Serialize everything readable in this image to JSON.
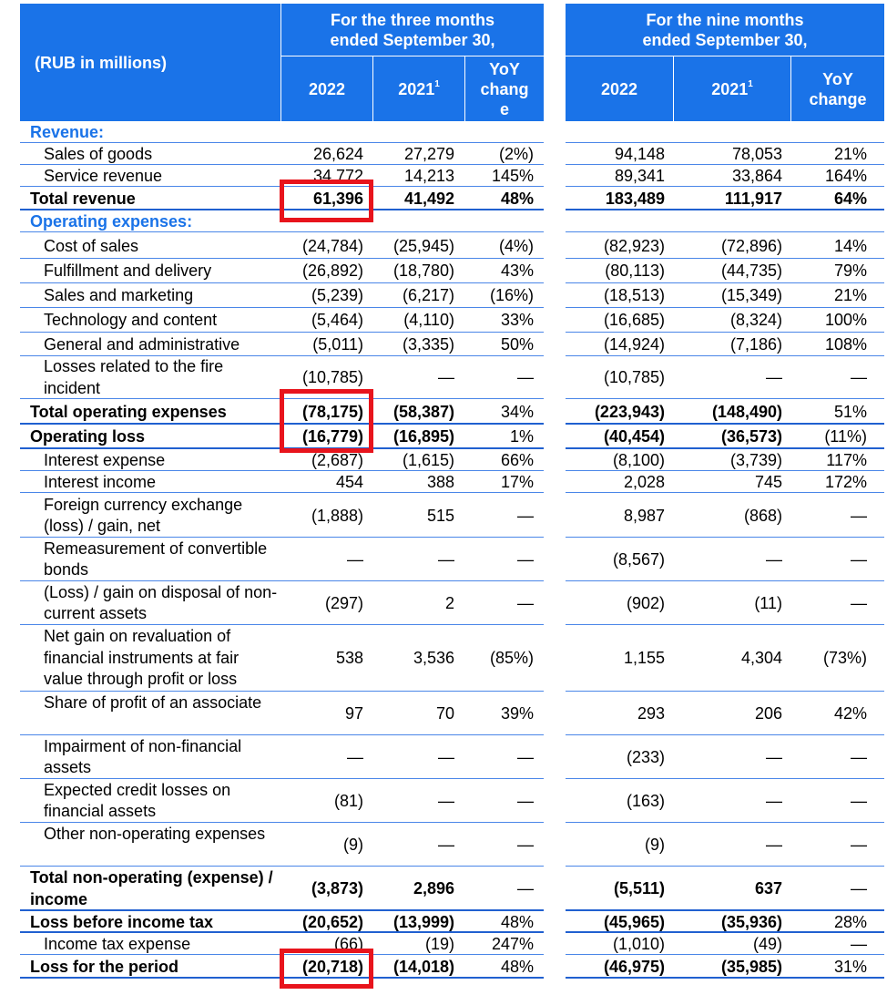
{
  "header": {
    "unit_label": "(RUB in millions)",
    "period_three": "For the three months ended September 30,",
    "period_nine": "For the nine months ended September 30,",
    "col_2022": "2022",
    "col_2021": "2021",
    "footnote_mark": "1",
    "yoy_three": "YoY chang e",
    "yoy_nine": "YoY change"
  },
  "rows": [
    {
      "label": "Revenue:",
      "type": "section",
      "values": [
        "",
        "",
        "",
        "",
        "",
        ""
      ]
    },
    {
      "label": "Sales of goods",
      "type": "item",
      "values": [
        "26,624",
        "27,279",
        "(2%)",
        "94,148",
        "78,053",
        "21%"
      ]
    },
    {
      "label": "Service revenue",
      "type": "item",
      "values": [
        "34,772",
        "14,213",
        "145%",
        "89,341",
        "33,864",
        "164%"
      ]
    },
    {
      "label": "Total revenue",
      "type": "total",
      "values": [
        "61,396",
        "41,492",
        "48%",
        "183,489",
        "111,917",
        "64%"
      ]
    },
    {
      "label": "Operating expenses:",
      "type": "section",
      "values": [
        "",
        "",
        "",
        "",
        "",
        ""
      ]
    },
    {
      "label": "Cost of sales",
      "type": "item",
      "values": [
        "(24,784)",
        "(25,945)",
        "(4%)",
        "(82,923)",
        "(72,896)",
        "14%"
      ]
    },
    {
      "label": "Fulfillment and delivery",
      "type": "item",
      "values": [
        "(26,892)",
        "(18,780)",
        "43%",
        "(80,113)",
        "(44,735)",
        "79%"
      ]
    },
    {
      "label": "Sales and marketing",
      "type": "item",
      "values": [
        "(5,239)",
        "(6,217)",
        "(16%)",
        "(18,513)",
        "(15,349)",
        "21%"
      ]
    },
    {
      "label": "Technology and content",
      "type": "item",
      "values": [
        "(5,464)",
        "(4,110)",
        "33%",
        "(16,685)",
        "(8,324)",
        "100%"
      ]
    },
    {
      "label": "General and administrative",
      "type": "item",
      "values": [
        "(5,011)",
        "(3,335)",
        "50%",
        "(14,924)",
        "(7,186)",
        "108%"
      ]
    },
    {
      "label": "Losses related to the fire incident",
      "type": "item",
      "values": [
        "(10,785)",
        "—",
        "—",
        "(10,785)",
        "—",
        "—"
      ]
    },
    {
      "label": "Total operating expenses",
      "type": "total",
      "values": [
        "(78,175)",
        "(58,387)",
        "34%",
        "(223,943)",
        "(148,490)",
        "51%"
      ]
    },
    {
      "label": "Operating loss",
      "type": "total",
      "values": [
        "(16,779)",
        "(16,895)",
        "1%",
        "(40,454)",
        "(36,573)",
        "(11%)"
      ]
    },
    {
      "label": "Interest expense",
      "type": "item",
      "values": [
        "(2,687)",
        "(1,615)",
        "66%",
        "(8,100)",
        "(3,739)",
        "117%"
      ]
    },
    {
      "label": "Interest income",
      "type": "item",
      "values": [
        "454",
        "388",
        "17%",
        "2,028",
        "745",
        "172%"
      ]
    },
    {
      "label": "Foreign currency exchange (loss) / gain, net",
      "type": "item",
      "values": [
        "(1,888)",
        "515",
        "—",
        "8,987",
        "(868)",
        "—"
      ]
    },
    {
      "label": "Remeasurement of convertible bonds",
      "type": "item",
      "values": [
        "—",
        "—",
        "—",
        "(8,567)",
        "—",
        "—"
      ]
    },
    {
      "label": "(Loss) / gain on disposal of non-current assets",
      "type": "item",
      "values": [
        "(297)",
        "2",
        "—",
        "(902)",
        "(11)",
        "—"
      ]
    },
    {
      "label": "Net gain on revaluation of financial instruments at fair value through profit or loss",
      "type": "item",
      "values": [
        "538",
        "3,536",
        "(85%)",
        "1,155",
        "4,304",
        "(73%)"
      ]
    },
    {
      "label": "Share of profit of an associate",
      "type": "item",
      "values": [
        "97",
        "70",
        "39%",
        "293",
        "206",
        "42%"
      ]
    },
    {
      "label": "Impairment of non-financial assets",
      "type": "item",
      "values": [
        "—",
        "—",
        "—",
        "(233)",
        "—",
        "—"
      ]
    },
    {
      "label": "Expected credit losses on financial assets",
      "type": "item",
      "values": [
        "(81)",
        "—",
        "—",
        "(163)",
        "—",
        "—"
      ]
    },
    {
      "label": "Other non-operating expenses",
      "type": "item",
      "values": [
        "(9)",
        "—",
        "—",
        "(9)",
        "—",
        "—"
      ]
    },
    {
      "label": "Total non-operating (expense) / income",
      "type": "total",
      "values": [
        "(3,873)",
        "2,896",
        "—",
        "(5,511)",
        "637",
        "—"
      ]
    },
    {
      "label": "Loss before income tax",
      "type": "total",
      "values": [
        "(20,652)",
        "(13,999)",
        "48%",
        "(45,965)",
        "(35,936)",
        "28%"
      ]
    },
    {
      "label": "Income tax expense",
      "type": "item",
      "values": [
        "(66)",
        "(19)",
        "247%",
        "(1,010)",
        "(49)",
        "—"
      ]
    },
    {
      "label": "Loss for the period",
      "type": "total",
      "values": [
        "(20,718)",
        "(14,018)",
        "48%",
        "(46,975)",
        "(35,985)",
        "31%"
      ]
    }
  ],
  "colors": {
    "header_bg": "#1a73e8",
    "section_text": "#1a73e8",
    "row_line": "#4a86e8",
    "highlight": "#e8141c"
  }
}
